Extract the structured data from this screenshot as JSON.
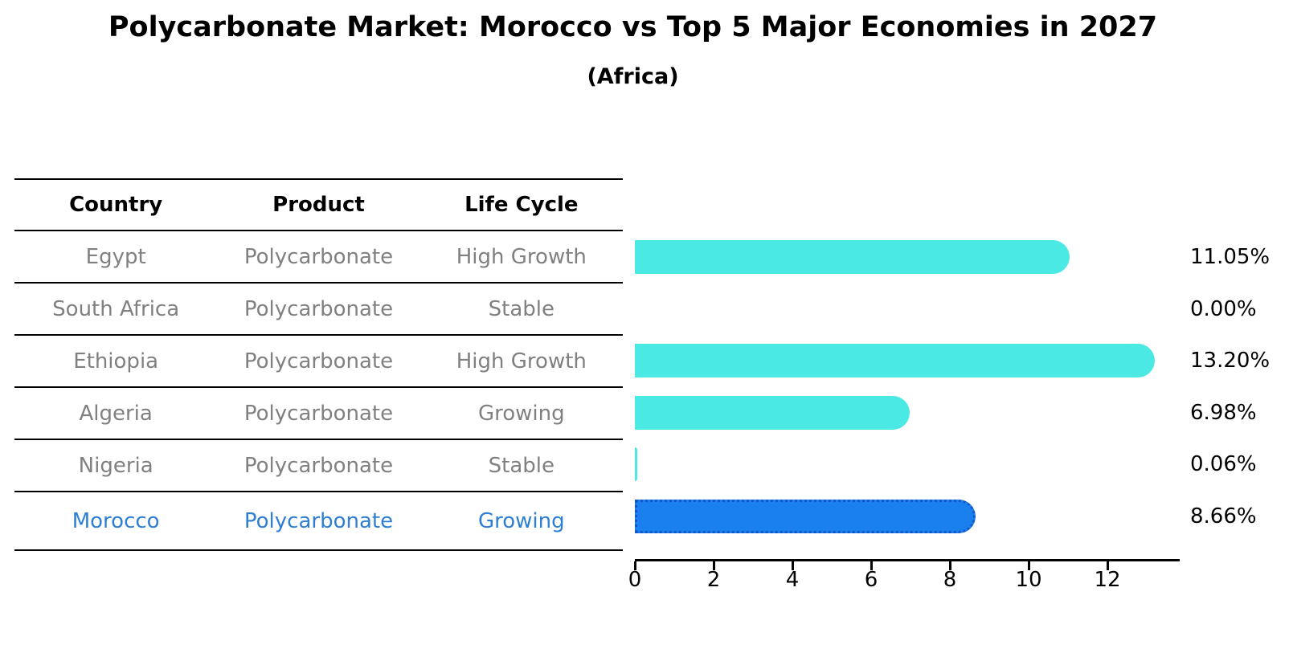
{
  "title": "Polycarbonate Market: Morocco vs Top 5 Major Economies in 2027",
  "subtitle": "(Africa)",
  "table": {
    "headers": [
      "Country",
      "Product",
      "Life Cycle"
    ],
    "rows": [
      {
        "country": "Egypt",
        "product": "Polycarbonate",
        "life_cycle": "High Growth",
        "highlight": false
      },
      {
        "country": "South Africa",
        "product": "Polycarbonate",
        "life_cycle": "Stable",
        "highlight": false
      },
      {
        "country": "Ethiopia",
        "product": "Polycarbonate",
        "life_cycle": "High Growth",
        "highlight": false
      },
      {
        "country": "Algeria",
        "product": "Polycarbonate",
        "life_cycle": "Growing",
        "highlight": false
      },
      {
        "country": "Nigeria",
        "product": "Polycarbonate",
        "life_cycle": "Stable",
        "highlight": false
      },
      {
        "country": "Morocco",
        "product": "Polycarbonate",
        "life_cycle": "Growing",
        "highlight": true
      }
    ]
  },
  "chart_data": {
    "type": "bar",
    "orientation": "horizontal",
    "title": "Polycarbonate Market: Morocco vs Top 5 Major Economies in 2027",
    "subtitle": "(Africa)",
    "categories": [
      "Egypt",
      "South Africa",
      "Ethiopia",
      "Algeria",
      "Nigeria",
      "Morocco"
    ],
    "values": [
      11.05,
      0.0,
      13.2,
      6.98,
      0.06,
      8.66
    ],
    "value_labels": [
      "11.05%",
      "0.00%",
      "13.20%",
      "6.98%",
      "0.06%",
      "8.66%"
    ],
    "x_ticks": [
      0,
      2,
      4,
      6,
      8,
      10,
      12
    ],
    "xlim": [
      0,
      13.85
    ],
    "grid": false,
    "legend": false,
    "bar_color": "#4BE9E3",
    "highlight_index": 5,
    "highlight_color": "#1A80EE",
    "highlight_border_color": "#1456C8",
    "text_color": "#808080",
    "highlight_text_color": "#2E7FD4"
  }
}
